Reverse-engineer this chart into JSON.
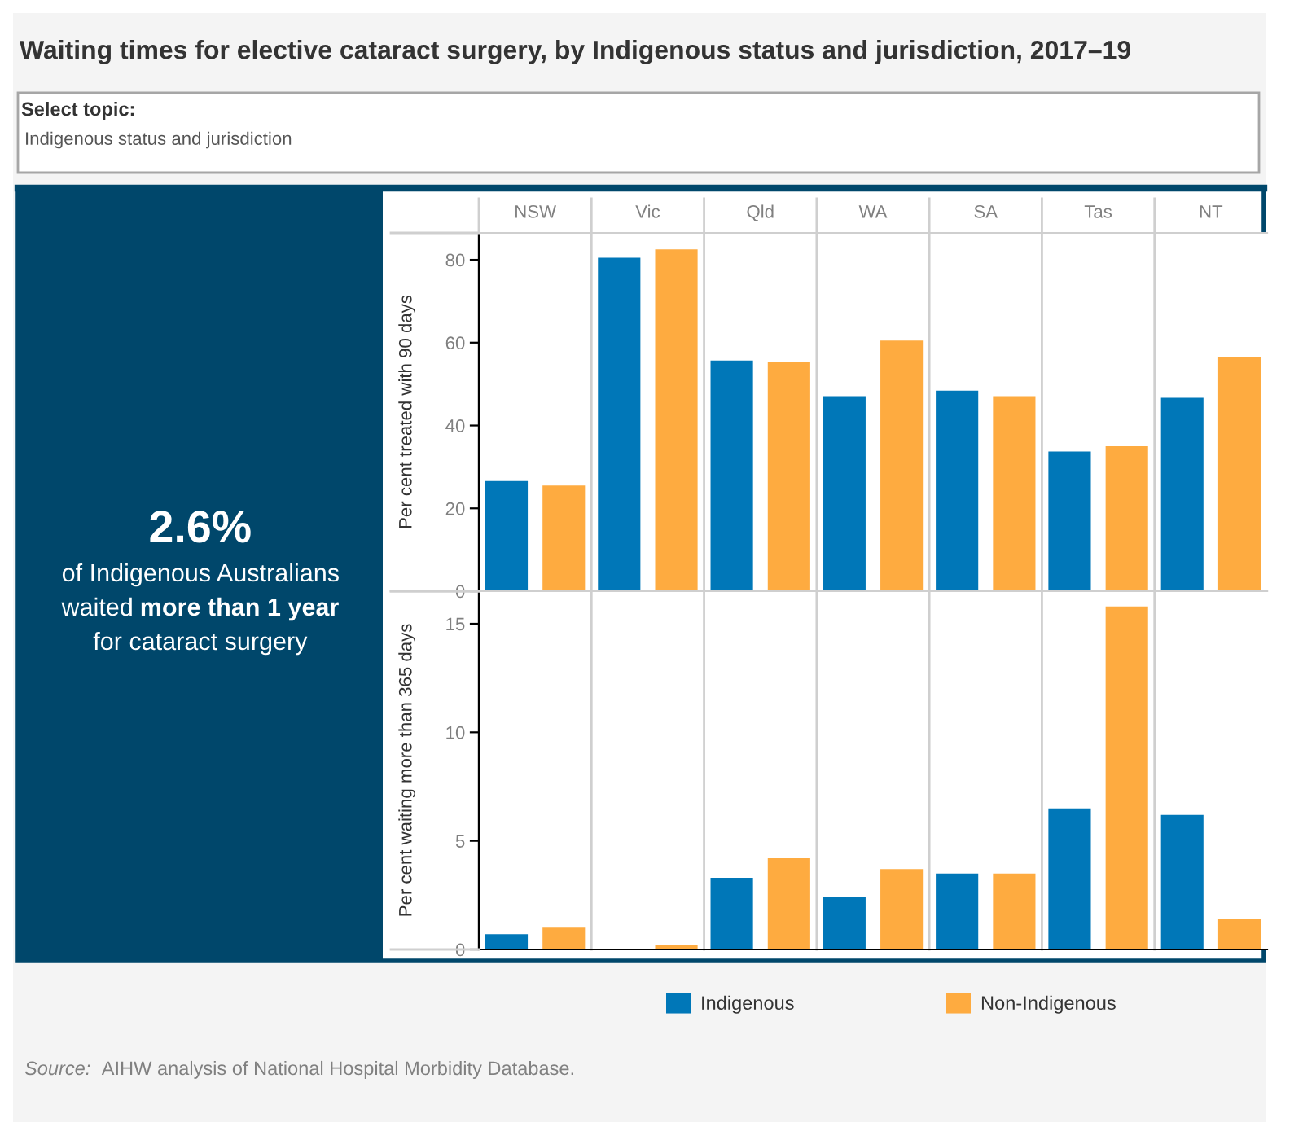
{
  "chart_data": [
    {
      "type": "other",
      "title": "Waiting times for elective cataract surgery, by Indigenous status and jurisdiction, 2017–19",
      "annotations": [
        "Select topic:",
        "Indigenous status and jurisdiction"
      ]
    },
    {
      "type": "other",
      "annotations": [
        "2.6%",
        "of Indigenous Australians",
        "waited",
        "more than 1 year",
        "for cataract surgery"
      ]
    },
    {
      "type": "bar",
      "categories": [
        "NSW",
        "Vic",
        "Qld",
        "WA",
        "SA",
        "Tas",
        "NT"
      ],
      "ylabel": "Per cent treated with 90 days",
      "ylim": [
        0,
        86.5
      ],
      "yticks": [
        0,
        20,
        40,
        60,
        80
      ],
      "series": [
        {
          "color": "#0077b8",
          "values": [
            26.6,
            80.5,
            55.7,
            47.1,
            48.4,
            33.7,
            46.7
          ]
        },
        {
          "color": "#feab40",
          "values": [
            25.5,
            82.5,
            55.3,
            60.5,
            47.1,
            35.0,
            56.6
          ]
        }
      ]
    },
    {
      "type": "bar",
      "categories": [
        null,
        null,
        null,
        null,
        null,
        null,
        null
      ],
      "ylabel": "Per cent waiting more than 365 days",
      "ylim": [
        0,
        16.5
      ],
      "yticks": [
        0,
        5,
        10,
        15
      ],
      "tick_labels": "y",
      "legend": "bottom",
      "series": [
        {
          "name": "Indigenous",
          "color": "#0077b8",
          "values": [
            0.7,
            0,
            3.3,
            2.4,
            3.5,
            6.5,
            6.2
          ]
        },
        {
          "name": "Non-Indigenous",
          "color": "#feab40",
          "values": [
            1.0,
            0.2,
            4.2,
            3.7,
            3.5,
            15.8,
            1.4
          ]
        }
      ],
      "annotations": [
        "Source:",
        "AIHW analysis of National Hospital Morbidity Database."
      ]
    }
  ]
}
